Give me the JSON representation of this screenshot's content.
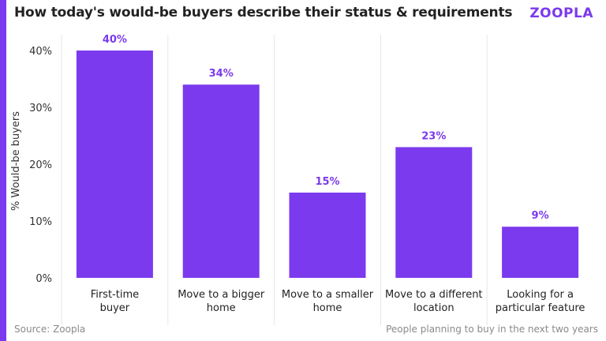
{
  "header": {
    "title": "How today's would-be buyers describe their status & requirements",
    "brand": "ZOOPLA"
  },
  "footer": {
    "source": "Source: Zoopla",
    "note": "People planning to buy in the next two years"
  },
  "colors": {
    "bar": "#7b3aed",
    "accent": "#7b3aed",
    "data_label": "#7b3aed",
    "grid": "#e6e6e6"
  },
  "chart_data": {
    "type": "bar",
    "categories": [
      [
        "First-time",
        "buyer"
      ],
      [
        "Move to a bigger",
        "home"
      ],
      [
        "Move to a smaller",
        "home"
      ],
      [
        "Move to a different",
        "location"
      ],
      [
        "Looking for a",
        "particular feature"
      ]
    ],
    "values": [
      40,
      34,
      15,
      23,
      9
    ],
    "data_labels": [
      "40%",
      "34%",
      "15%",
      "23%",
      "9%"
    ],
    "ylabel": "% Would-be buyers",
    "ylim": [
      0,
      40
    ],
    "yticks": [
      0,
      10,
      20,
      30,
      40
    ],
    "ytick_labels": [
      "0%",
      "10%",
      "20%",
      "30%",
      "40%"
    ],
    "grid": "vertical separators between categories"
  }
}
